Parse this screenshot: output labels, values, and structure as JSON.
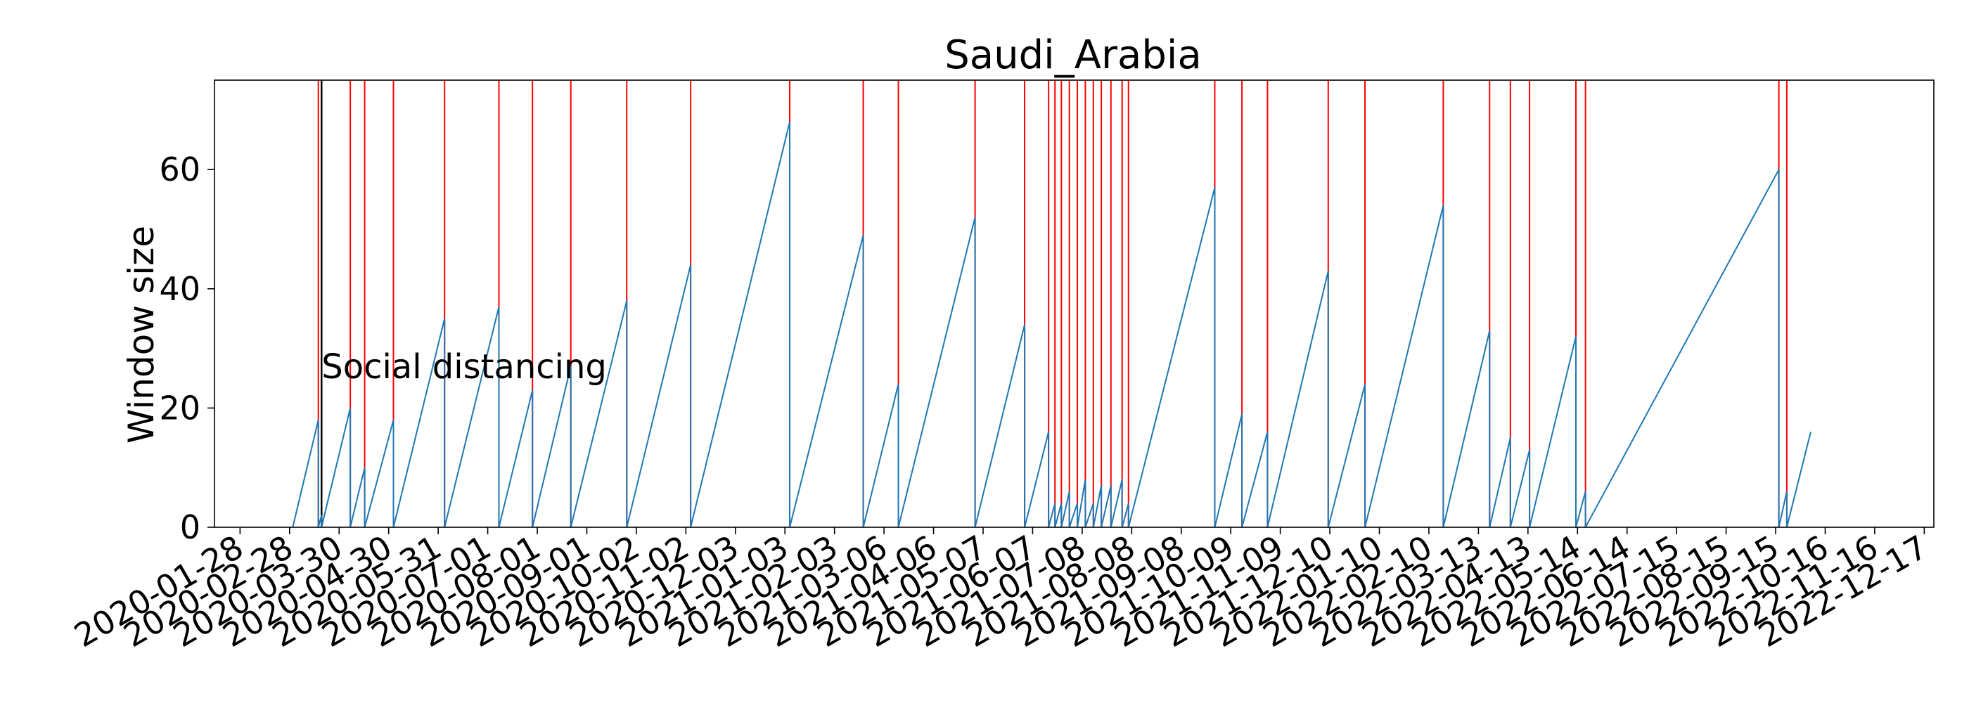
{
  "chart_data": {
    "type": "line",
    "title": "Saudi_Arabia",
    "ylabel": "Window size",
    "xlabel": "",
    "ylim": [
      0,
      75
    ],
    "y_ticks": [
      0,
      20,
      40,
      60
    ],
    "x_ticks": [
      "2020-01-28",
      "2020-02-28",
      "2020-03-30",
      "2020-04-30",
      "2020-05-31",
      "2020-07-01",
      "2020-08-01",
      "2020-09-01",
      "2020-10-02",
      "2020-11-02",
      "2020-12-03",
      "2021-01-03",
      "2021-02-03",
      "2021-03-06",
      "2021-04-06",
      "2021-05-07",
      "2021-06-07",
      "2021-07-08",
      "2021-08-08",
      "2021-09-08",
      "2021-10-09",
      "2021-11-09",
      "2021-12-10",
      "2022-01-10",
      "2022-02-10",
      "2022-03-13",
      "2022-04-13",
      "2022-05-14",
      "2022-06-14",
      "2022-07-15",
      "2022-08-15",
      "2022-09-15",
      "2022-10-16",
      "2022-11-16",
      "2022-12-17"
    ],
    "x_range": [
      "2020-01-12",
      "2022-12-23"
    ],
    "grid": false,
    "annotation": {
      "text": "Social distancing",
      "date": "2020-03-19",
      "y": 27
    },
    "intervention_line": {
      "date": "2020-03-19",
      "color": "#000000"
    },
    "change_point_color": "#ff0000",
    "series_color": "#1f77b4",
    "change_points": [
      "2020-03-17",
      "2020-03-19",
      "2020-04-06",
      "2020-04-15",
      "2020-05-03",
      "2020-06-04",
      "2020-07-08",
      "2020-07-29",
      "2020-08-22",
      "2020-09-26",
      "2020-11-05",
      "2021-01-06",
      "2021-02-21",
      "2021-03-15",
      "2021-05-02",
      "2021-06-02",
      "2021-06-17",
      "2021-06-21",
      "2021-06-25",
      "2021-06-30",
      "2021-07-05",
      "2021-07-10",
      "2021-07-15",
      "2021-07-20",
      "2021-07-26",
      "2021-08-02",
      "2021-08-06",
      "2021-09-29",
      "2021-10-16",
      "2021-11-01",
      "2021-12-09",
      "2022-01-01",
      "2022-02-19",
      "2022-03-20",
      "2022-04-02",
      "2022-04-14",
      "2022-05-13",
      "2022-05-19",
      "2022-09-17",
      "2022-09-22"
    ],
    "series": [
      {
        "values": [
          [
            "2020-03-01",
            0
          ],
          [
            "2020-03-17",
            18
          ],
          [
            "2020-03-17",
            0
          ],
          [
            "2020-03-19",
            2
          ],
          [
            "2020-03-19",
            0
          ],
          [
            "2020-04-06",
            20
          ],
          [
            "2020-04-06",
            0
          ],
          [
            "2020-04-15",
            10
          ],
          [
            "2020-04-15",
            0
          ],
          [
            "2020-05-03",
            18
          ],
          [
            "2020-05-03",
            0
          ],
          [
            "2020-06-04",
            35
          ],
          [
            "2020-06-04",
            0
          ],
          [
            "2020-07-08",
            37
          ],
          [
            "2020-07-08",
            0
          ],
          [
            "2020-07-29",
            23
          ],
          [
            "2020-07-29",
            0
          ],
          [
            "2020-08-22",
            27
          ],
          [
            "2020-08-22",
            0
          ],
          [
            "2020-09-26",
            38
          ],
          [
            "2020-09-26",
            0
          ],
          [
            "2020-11-05",
            44
          ],
          [
            "2020-11-05",
            0
          ],
          [
            "2021-01-06",
            68
          ],
          [
            "2021-01-06",
            0
          ],
          [
            "2021-02-21",
            49
          ],
          [
            "2021-02-21",
            0
          ],
          [
            "2021-03-15",
            24
          ],
          [
            "2021-03-15",
            0
          ],
          [
            "2021-05-02",
            52
          ],
          [
            "2021-05-02",
            0
          ],
          [
            "2021-06-02",
            34
          ],
          [
            "2021-06-02",
            0
          ],
          [
            "2021-06-17",
            16
          ],
          [
            "2021-06-17",
            0
          ],
          [
            "2021-06-21",
            4
          ],
          [
            "2021-06-21",
            0
          ],
          [
            "2021-06-25",
            4
          ],
          [
            "2021-06-25",
            0
          ],
          [
            "2021-06-30",
            6
          ],
          [
            "2021-06-30",
            0
          ],
          [
            "2021-07-05",
            4
          ],
          [
            "2021-07-05",
            0
          ],
          [
            "2021-07-10",
            8
          ],
          [
            "2021-07-10",
            0
          ],
          [
            "2021-07-15",
            4
          ],
          [
            "2021-07-15",
            0
          ],
          [
            "2021-07-20",
            7
          ],
          [
            "2021-07-20",
            0
          ],
          [
            "2021-07-26",
            7
          ],
          [
            "2021-07-26",
            0
          ],
          [
            "2021-08-02",
            8
          ],
          [
            "2021-08-02",
            0
          ],
          [
            "2021-08-06",
            4
          ],
          [
            "2021-08-06",
            0
          ],
          [
            "2021-09-29",
            57
          ],
          [
            "2021-09-29",
            0
          ],
          [
            "2021-10-16",
            19
          ],
          [
            "2021-10-16",
            0
          ],
          [
            "2021-11-01",
            16
          ],
          [
            "2021-11-01",
            0
          ],
          [
            "2021-12-09",
            43
          ],
          [
            "2021-12-09",
            0
          ],
          [
            "2022-01-01",
            24
          ],
          [
            "2022-01-01",
            0
          ],
          [
            "2022-02-19",
            54
          ],
          [
            "2022-02-19",
            0
          ],
          [
            "2022-03-20",
            33
          ],
          [
            "2022-03-20",
            0
          ],
          [
            "2022-04-02",
            15
          ],
          [
            "2022-04-02",
            0
          ],
          [
            "2022-04-14",
            13
          ],
          [
            "2022-04-14",
            0
          ],
          [
            "2022-05-13",
            32
          ],
          [
            "2022-05-13",
            0
          ],
          [
            "2022-05-19",
            6
          ],
          [
            "2022-05-19",
            0
          ],
          [
            "2022-09-17",
            60
          ],
          [
            "2022-09-17",
            0
          ],
          [
            "2022-09-22",
            6
          ],
          [
            "2022-09-22",
            0
          ],
          [
            "2022-10-07",
            16
          ]
        ]
      }
    ]
  }
}
